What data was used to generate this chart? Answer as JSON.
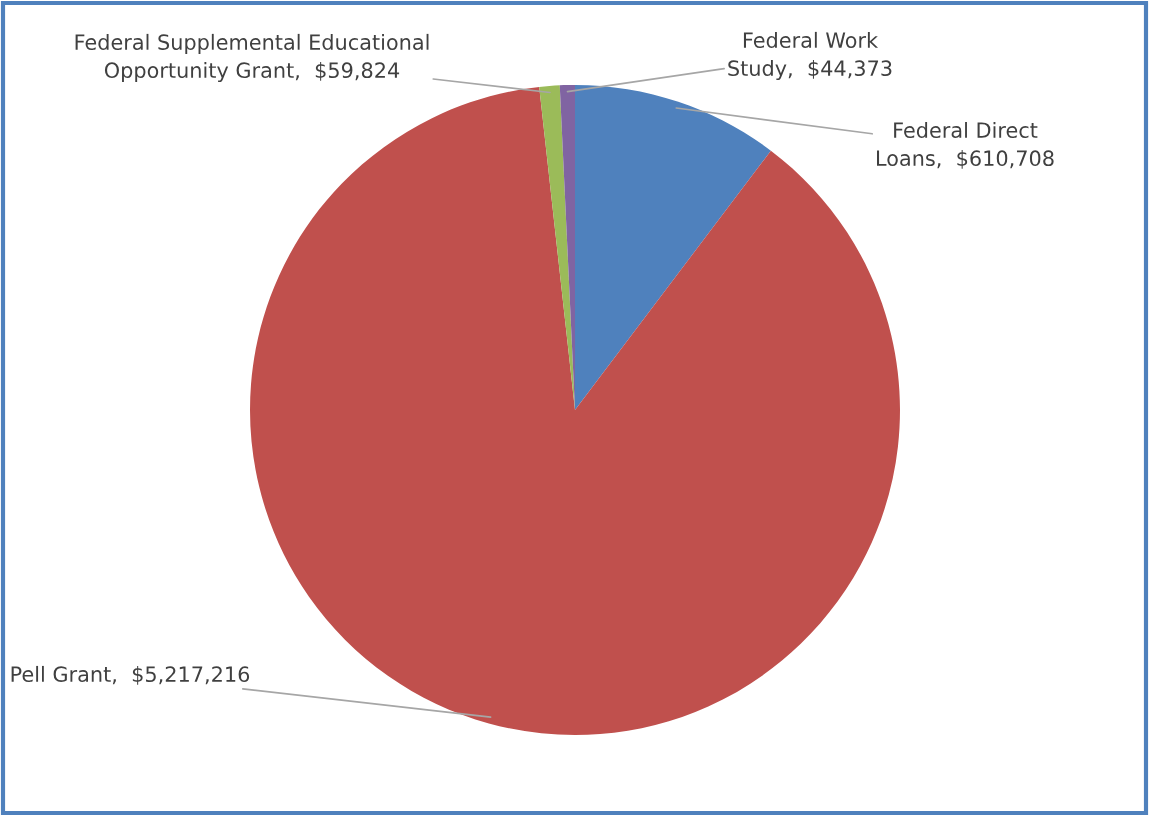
{
  "chart_data": {
    "type": "pie",
    "categories": [
      "Federal Direct\nLoans",
      "Pell Grant",
      "Federal Supplemental Educational\nOpportunity Grant",
      "Federal Work\nStudy"
    ],
    "values": [
      610708,
      5217216,
      59824,
      44373
    ],
    "value_labels": [
      "$610,708",
      "$5,217,216",
      "$59,824",
      "$44,373"
    ],
    "colors": [
      "#4f81bd",
      "#c0504d",
      "#9bbb59",
      "#8064a2"
    ]
  }
}
